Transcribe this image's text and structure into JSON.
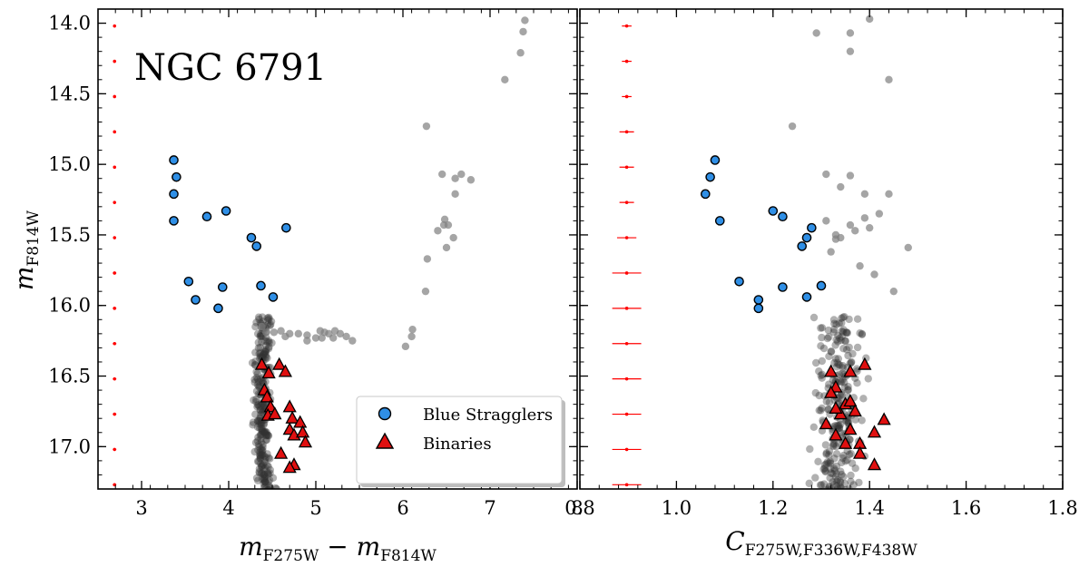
{
  "figure": {
    "cluster_name": "NGC 6791",
    "legend": {
      "blue_stragglers": "Blue Stragglers",
      "binaries": "Binaries"
    },
    "y_label": {
      "main": "m",
      "sub": "F814W"
    },
    "left_x_label": {
      "m1": "m",
      "sub1": "F275W",
      "minus": " − ",
      "m2": "m",
      "sub2": "F814W"
    },
    "right_x_label": {
      "main": "C",
      "sub": "F275W,F336W,F438W"
    }
  },
  "colors": {
    "background_stars": "#7f7f7f",
    "dense_stars": "#333333",
    "blue_stragglers": "#2f8fe6",
    "binaries": "#e01010",
    "error_bars": "#ff0000",
    "marker_edge": "#000000"
  },
  "chart_data": [
    {
      "type": "scatter",
      "panel": "left",
      "xlabel": "m_F275W − m_F814W",
      "ylabel": "m_F814W",
      "xlim": [
        2.5,
        8.0
      ],
      "ylim": [
        17.3,
        13.9
      ],
      "y_inverted": true,
      "xticks": [
        3,
        4,
        5,
        6,
        7,
        8
      ],
      "yticks": [
        14.0,
        14.5,
        15.0,
        15.5,
        16.0,
        16.5,
        17.0
      ],
      "legend_placement": "lower-right",
      "annotation": "NGC 6791",
      "series": [
        {
          "name": "Blue Stragglers",
          "marker": "circle",
          "points": [
            [
              3.37,
              14.97
            ],
            [
              3.4,
              15.09
            ],
            [
              3.37,
              15.21
            ],
            [
              3.37,
              15.4
            ],
            [
              3.75,
              15.37
            ],
            [
              3.97,
              15.33
            ],
            [
              4.26,
              15.52
            ],
            [
              4.32,
              15.58
            ],
            [
              4.66,
              15.45
            ],
            [
              3.54,
              15.83
            ],
            [
              3.62,
              15.96
            ],
            [
              3.88,
              16.02
            ],
            [
              3.93,
              15.87
            ],
            [
              4.37,
              15.86
            ],
            [
              4.51,
              15.94
            ]
          ]
        },
        {
          "name": "Binaries",
          "marker": "triangle",
          "points": [
            [
              4.38,
              16.42
            ],
            [
              4.46,
              16.48
            ],
            [
              4.58,
              16.42
            ],
            [
              4.65,
              16.47
            ],
            [
              4.41,
              16.6
            ],
            [
              4.44,
              16.65
            ],
            [
              4.48,
              16.72
            ],
            [
              4.45,
              16.78
            ],
            [
              4.53,
              16.77
            ],
            [
              4.7,
              16.72
            ],
            [
              4.73,
              16.8
            ],
            [
              4.7,
              16.88
            ],
            [
              4.75,
              16.92
            ],
            [
              4.82,
              16.83
            ],
            [
              4.85,
              16.9
            ],
            [
              4.88,
              16.97
            ],
            [
              4.6,
              17.05
            ],
            [
              4.75,
              17.13
            ],
            [
              4.7,
              17.15
            ]
          ]
        },
        {
          "name": "",
          "role": "field-stars",
          "points": [
            [
              7.4,
              13.98
            ],
            [
              7.38,
              14.06
            ],
            [
              7.35,
              14.21
            ],
            [
              7.17,
              14.4
            ],
            [
              6.27,
              14.73
            ],
            [
              6.45,
              15.07
            ],
            [
              6.6,
              15.1
            ],
            [
              6.67,
              15.07
            ],
            [
              6.78,
              15.11
            ],
            [
              6.6,
              15.21
            ],
            [
              6.48,
              15.39
            ],
            [
              6.47,
              15.43
            ],
            [
              6.52,
              15.43
            ],
            [
              6.4,
              15.47
            ],
            [
              6.58,
              15.52
            ],
            [
              6.5,
              15.59
            ],
            [
              6.28,
              15.67
            ],
            [
              6.26,
              15.9
            ],
            [
              6.11,
              16.17
            ],
            [
              6.1,
              16.22
            ],
            [
              6.03,
              16.29
            ],
            [
              4.6,
              16.18
            ],
            [
              4.7,
              16.2
            ],
            [
              4.8,
              16.2
            ],
            [
              4.9,
              16.21
            ],
            [
              5.0,
              16.23
            ],
            [
              5.07,
              16.23
            ],
            [
              5.1,
              16.19
            ],
            [
              5.15,
              16.2
            ],
            [
              5.2,
              16.23
            ],
            [
              5.28,
              16.2
            ],
            [
              5.35,
              16.22
            ],
            [
              5.42,
              16.25
            ],
            [
              4.38,
              16.15
            ],
            [
              4.43,
              16.19
            ],
            [
              4.52,
              16.19
            ],
            [
              4.9,
              16.25
            ],
            [
              5.05,
              16.18
            ],
            [
              5.22,
              16.18
            ],
            [
              4.65,
              16.22
            ]
          ]
        },
        {
          "name": "",
          "role": "error-bars",
          "x": 2.69,
          "y": [
            14.02,
            14.27,
            14.52,
            14.77,
            15.02,
            15.27,
            15.52,
            15.77,
            16.02,
            16.27,
            16.52,
            16.77,
            17.02,
            17.27
          ],
          "xerr": [
            0.01,
            0.01,
            0.01,
            0.01,
            0.01,
            0.01,
            0.01,
            0.02,
            0.02,
            0.02,
            0.02,
            0.02,
            0.02,
            0.02
          ]
        }
      ]
    },
    {
      "type": "scatter",
      "panel": "right",
      "xlabel": "C_F275W,F336W,F438W",
      "xlim": [
        0.8,
        1.8
      ],
      "ylim": [
        17.3,
        13.9
      ],
      "y_inverted": true,
      "xticks": [
        0.8,
        1.0,
        1.2,
        1.4,
        1.6,
        1.8
      ],
      "series": [
        {
          "name": "Blue Stragglers",
          "marker": "circle",
          "points": [
            [
              1.08,
              14.97
            ],
            [
              1.07,
              15.09
            ],
            [
              1.06,
              15.21
            ],
            [
              1.09,
              15.4
            ],
            [
              1.2,
              15.33
            ],
            [
              1.22,
              15.37
            ],
            [
              1.28,
              15.45
            ],
            [
              1.27,
              15.52
            ],
            [
              1.26,
              15.58
            ],
            [
              1.13,
              15.83
            ],
            [
              1.17,
              15.96
            ],
            [
              1.17,
              16.02
            ],
            [
              1.22,
              15.87
            ],
            [
              1.3,
              15.86
            ],
            [
              1.27,
              15.94
            ]
          ]
        },
        {
          "name": "Binaries",
          "marker": "triangle",
          "points": [
            [
              1.32,
              16.47
            ],
            [
              1.36,
              16.47
            ],
            [
              1.39,
              16.42
            ],
            [
              1.33,
              16.58
            ],
            [
              1.32,
              16.62
            ],
            [
              1.35,
              16.7
            ],
            [
              1.36,
              16.68
            ],
            [
              1.34,
              16.77
            ],
            [
              1.37,
              16.75
            ],
            [
              1.31,
              16.84
            ],
            [
              1.33,
              16.92
            ],
            [
              1.36,
              16.88
            ],
            [
              1.35,
              16.98
            ],
            [
              1.38,
              16.98
            ],
            [
              1.41,
              16.9
            ],
            [
              1.43,
              16.81
            ],
            [
              1.38,
              17.05
            ],
            [
              1.41,
              17.13
            ],
            [
              1.33,
              16.73
            ]
          ]
        },
        {
          "name": "",
          "role": "field-stars",
          "points": [
            [
              1.4,
              13.97
            ],
            [
              1.29,
              14.07
            ],
            [
              1.36,
              14.07
            ],
            [
              1.36,
              14.2
            ],
            [
              1.44,
              14.4
            ],
            [
              1.24,
              14.73
            ],
            [
              1.31,
              15.07
            ],
            [
              1.36,
              15.08
            ],
            [
              1.39,
              15.21
            ],
            [
              1.34,
              15.16
            ],
            [
              1.44,
              15.21
            ],
            [
              1.42,
              15.35
            ],
            [
              1.31,
              15.4
            ],
            [
              1.36,
              15.43
            ],
            [
              1.39,
              15.38
            ],
            [
              1.4,
              15.45
            ],
            [
              1.33,
              15.5
            ],
            [
              1.37,
              15.47
            ],
            [
              1.33,
              15.53
            ],
            [
              1.32,
              15.62
            ],
            [
              1.34,
              15.52
            ],
            [
              1.48,
              15.59
            ],
            [
              1.38,
              15.72
            ],
            [
              1.41,
              15.78
            ],
            [
              1.45,
              15.9
            ]
          ]
        },
        {
          "name": "",
          "role": "error-bars",
          "x": 0.897,
          "y": [
            14.02,
            14.27,
            14.52,
            14.77,
            15.02,
            15.27,
            15.52,
            15.77,
            16.02,
            16.27,
            16.52,
            16.77,
            17.02,
            17.27
          ],
          "xerr": [
            0.01,
            0.01,
            0.01,
            0.015,
            0.015,
            0.015,
            0.02,
            0.03,
            0.03,
            0.03,
            0.03,
            0.03,
            0.03,
            0.03
          ]
        }
      ]
    }
  ]
}
